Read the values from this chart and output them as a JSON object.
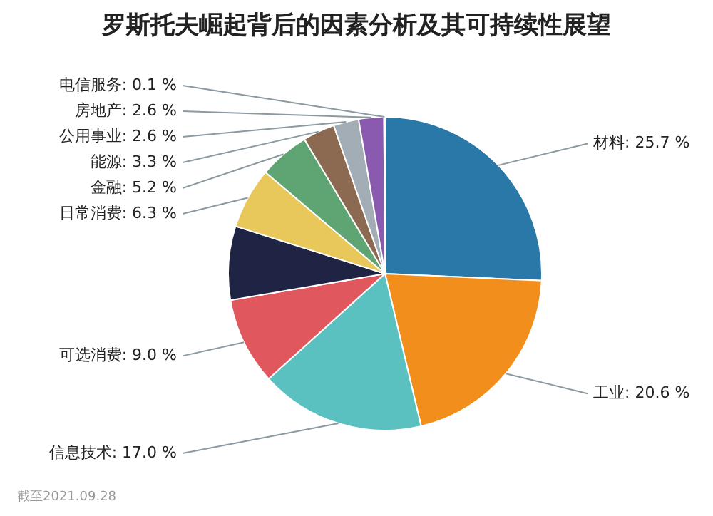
{
  "chart_data": {
    "type": "pie",
    "title": "罗斯托夫崛起背后的因素分析及其可持续性展望",
    "categories": [
      "材料",
      "工业",
      "信息技术",
      "可选消费",
      null,
      "日常消费",
      "金融",
      "能源",
      "公用事业",
      "房地产",
      "电信服务"
    ],
    "values": [
      25.7,
      20.6,
      17.0,
      9.0,
      7.6,
      6.3,
      5.2,
      3.3,
      2.6,
      2.6,
      0.1
    ],
    "value_labels": [
      "25.7 %",
      "20.6 %",
      "17.0 %",
      "9.0 %",
      null,
      "6.3 %",
      "5.2 %",
      "3.3 %",
      "2.6 %",
      "2.6 %",
      "0.1 %"
    ],
    "colors": [
      "#2a78a8",
      "#f28e1c",
      "#5bc0c0",
      "#e0575e",
      "#1f2444",
      "#e8c85a",
      "#5fa573",
      "#8c6a52",
      "#a3adb5",
      "#8a5ab0",
      "#4a8fb0"
    ],
    "annotations": [
      "截至2021.09.28"
    ]
  }
}
